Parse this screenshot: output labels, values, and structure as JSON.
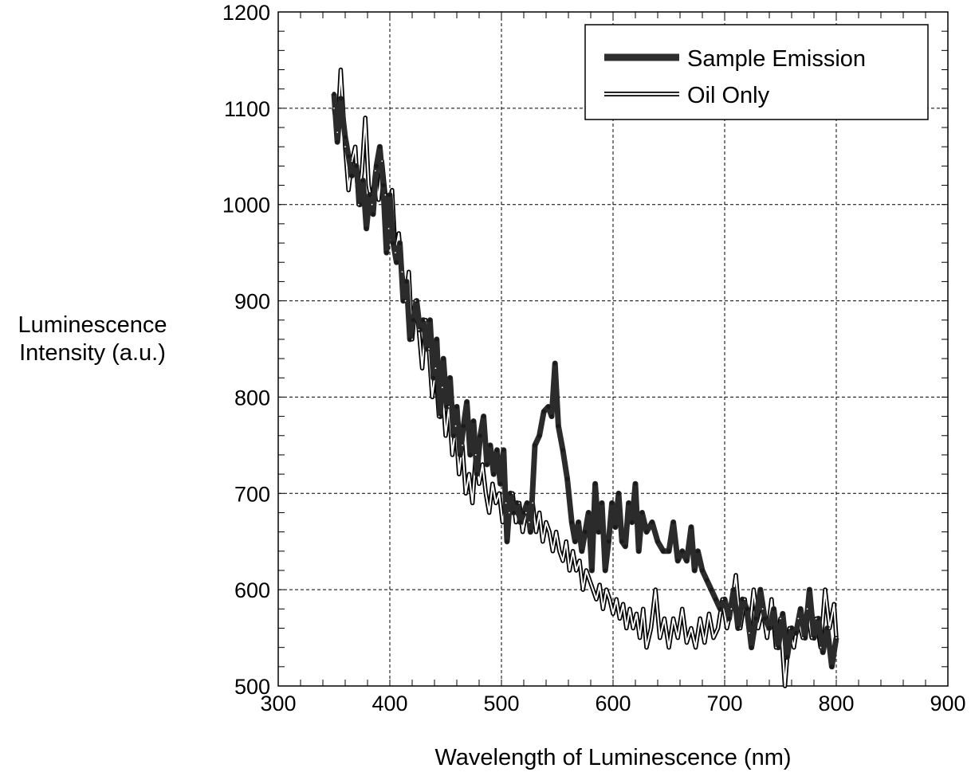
{
  "chart_data": {
    "type": "line",
    "title": "",
    "xlabel": "Wavelength of Luminescence (nm)",
    "ylabel_lines": [
      "Luminescence",
      "Intensity (a.u.)"
    ],
    "xlim": [
      300,
      900
    ],
    "ylim": [
      500,
      1200
    ],
    "x_ticks": [
      "300",
      "400",
      "500",
      "600",
      "700",
      "800",
      "900"
    ],
    "y_ticks": [
      "500",
      "600",
      "700",
      "800",
      "900",
      "1000",
      "1100",
      "1200"
    ],
    "grid": true,
    "legend_position": "top-right",
    "series": [
      {
        "name": "Sample Emission",
        "style": "thick-dark",
        "points": [
          [
            350,
            1115
          ],
          [
            353,
            1065
          ],
          [
            356,
            1110
          ],
          [
            360,
            1070
          ],
          [
            363,
            1050
          ],
          [
            366,
            1030
          ],
          [
            370,
            1040
          ],
          [
            373,
            1000
          ],
          [
            376,
            1025
          ],
          [
            379,
            975
          ],
          [
            382,
            1010
          ],
          [
            385,
            990
          ],
          [
            388,
            1040
          ],
          [
            391,
            1060
          ],
          [
            394,
            1020
          ],
          [
            397,
            950
          ],
          [
            400,
            1010
          ],
          [
            403,
            960
          ],
          [
            406,
            940
          ],
          [
            409,
            960
          ],
          [
            412,
            900
          ],
          [
            415,
            920
          ],
          [
            418,
            860
          ],
          [
            421,
            880
          ],
          [
            424,
            900
          ],
          [
            427,
            870
          ],
          [
            430,
            880
          ],
          [
            433,
            850
          ],
          [
            436,
            880
          ],
          [
            439,
            820
          ],
          [
            442,
            860
          ],
          [
            445,
            780
          ],
          [
            448,
            840
          ],
          [
            451,
            790
          ],
          [
            454,
            820
          ],
          [
            457,
            760
          ],
          [
            460,
            790
          ],
          [
            463,
            740
          ],
          [
            466,
            770
          ],
          [
            469,
            795
          ],
          [
            472,
            740
          ],
          [
            475,
            775
          ],
          [
            478,
            720
          ],
          [
            481,
            760
          ],
          [
            484,
            780
          ],
          [
            487,
            730
          ],
          [
            490,
            750
          ],
          [
            493,
            720
          ],
          [
            496,
            745
          ],
          [
            499,
            710
          ],
          [
            502,
            745
          ],
          [
            505,
            650
          ],
          [
            508,
            700
          ],
          [
            511,
            680
          ],
          [
            514,
            690
          ],
          [
            517,
            670
          ],
          [
            520,
            680
          ],
          [
            523,
            690
          ],
          [
            526,
            660
          ],
          [
            530,
            750
          ],
          [
            534,
            760
          ],
          [
            538,
            785
          ],
          [
            542,
            790
          ],
          [
            545,
            780
          ],
          [
            548,
            835
          ],
          [
            551,
            770
          ],
          [
            555,
            745
          ],
          [
            559,
            715
          ],
          [
            563,
            670
          ],
          [
            566,
            650
          ],
          [
            569,
            670
          ],
          [
            572,
            640
          ],
          [
            575,
            660
          ],
          [
            578,
            680
          ],
          [
            581,
            620
          ],
          [
            584,
            710
          ],
          [
            587,
            660
          ],
          [
            590,
            690
          ],
          [
            593,
            620
          ],
          [
            596,
            650
          ],
          [
            599,
            690
          ],
          [
            602,
            665
          ],
          [
            605,
            700
          ],
          [
            608,
            650
          ],
          [
            611,
            645
          ],
          [
            614,
            690
          ],
          [
            617,
            670
          ],
          [
            620,
            710
          ],
          [
            623,
            640
          ],
          [
            626,
            680
          ],
          [
            630,
            660
          ],
          [
            635,
            670
          ],
          [
            640,
            650
          ],
          [
            645,
            640
          ],
          [
            650,
            640
          ],
          [
            654,
            670
          ],
          [
            658,
            630
          ],
          [
            662,
            640
          ],
          [
            666,
            630
          ],
          [
            670,
            665
          ],
          [
            673,
            620
          ],
          [
            676,
            640
          ],
          [
            680,
            620
          ],
          [
            684,
            610
          ],
          [
            688,
            600
          ],
          [
            692,
            590
          ],
          [
            696,
            580
          ],
          [
            700,
            590
          ],
          [
            704,
            570
          ],
          [
            708,
            600
          ],
          [
            712,
            560
          ],
          [
            716,
            590
          ],
          [
            720,
            580
          ],
          [
            724,
            540
          ],
          [
            728,
            570
          ],
          [
            732,
            600
          ],
          [
            736,
            570
          ],
          [
            740,
            560
          ],
          [
            744,
            580
          ],
          [
            748,
            540
          ],
          [
            752,
            575
          ],
          [
            756,
            530
          ],
          [
            760,
            560
          ],
          [
            764,
            555
          ],
          [
            768,
            580
          ],
          [
            772,
            550
          ],
          [
            776,
            600
          ],
          [
            780,
            550
          ],
          [
            784,
            570
          ],
          [
            788,
            535
          ],
          [
            792,
            560
          ],
          [
            796,
            520
          ],
          [
            800,
            550
          ]
        ]
      },
      {
        "name": "Oil Only",
        "style": "thin-outline",
        "points": [
          [
            350,
            1100
          ],
          [
            353,
            1075
          ],
          [
            356,
            1140
          ],
          [
            360,
            1060
          ],
          [
            363,
            1015
          ],
          [
            366,
            1045
          ],
          [
            369,
            1060
          ],
          [
            372,
            1000
          ],
          [
            375,
            1035
          ],
          [
            378,
            1090
          ],
          [
            381,
            1020
          ],
          [
            384,
            1000
          ],
          [
            387,
            1035
          ],
          [
            390,
            1005
          ],
          [
            393,
            1045
          ],
          [
            396,
            1010
          ],
          [
            399,
            975
          ],
          [
            402,
            1015
          ],
          [
            405,
            950
          ],
          [
            408,
            970
          ],
          [
            411,
            930
          ],
          [
            414,
            900
          ],
          [
            417,
            930
          ],
          [
            420,
            860
          ],
          [
            423,
            900
          ],
          [
            426,
            870
          ],
          [
            429,
            830
          ],
          [
            432,
            880
          ],
          [
            435,
            850
          ],
          [
            438,
            800
          ],
          [
            441,
            830
          ],
          [
            444,
            780
          ],
          [
            447,
            810
          ],
          [
            450,
            760
          ],
          [
            453,
            790
          ],
          [
            456,
            740
          ],
          [
            459,
            770
          ],
          [
            462,
            720
          ],
          [
            465,
            750
          ],
          [
            468,
            700
          ],
          [
            471,
            720
          ],
          [
            474,
            690
          ],
          [
            477,
            740
          ],
          [
            480,
            710
          ],
          [
            483,
            730
          ],
          [
            486,
            700
          ],
          [
            489,
            680
          ],
          [
            492,
            710
          ],
          [
            495,
            690
          ],
          [
            498,
            700
          ],
          [
            501,
            670
          ],
          [
            504,
            690
          ],
          [
            507,
            680
          ],
          [
            510,
            700
          ],
          [
            513,
            670
          ],
          [
            516,
            690
          ],
          [
            519,
            660
          ],
          [
            522,
            680
          ],
          [
            525,
            670
          ],
          [
            528,
            690
          ],
          [
            531,
            660
          ],
          [
            534,
            680
          ],
          [
            537,
            650
          ],
          [
            540,
            670
          ],
          [
            543,
            660
          ],
          [
            546,
            640
          ],
          [
            549,
            660
          ],
          [
            552,
            640
          ],
          [
            555,
            630
          ],
          [
            558,
            650
          ],
          [
            561,
            620
          ],
          [
            564,
            640
          ],
          [
            567,
            620
          ],
          [
            570,
            630
          ],
          [
            573,
            600
          ],
          [
            576,
            620
          ],
          [
            579,
            610
          ],
          [
            582,
            600
          ],
          [
            585,
            590
          ],
          [
            588,
            605
          ],
          [
            591,
            580
          ],
          [
            594,
            600
          ],
          [
            597,
            590
          ],
          [
            600,
            575
          ],
          [
            603,
            590
          ],
          [
            606,
            570
          ],
          [
            609,
            585
          ],
          [
            612,
            560
          ],
          [
            615,
            580
          ],
          [
            618,
            560
          ],
          [
            621,
            575
          ],
          [
            624,
            550
          ],
          [
            627,
            580
          ],
          [
            630,
            540
          ],
          [
            634,
            560
          ],
          [
            638,
            600
          ],
          [
            642,
            550
          ],
          [
            646,
            570
          ],
          [
            650,
            540
          ],
          [
            654,
            570
          ],
          [
            658,
            550
          ],
          [
            662,
            580
          ],
          [
            666,
            545
          ],
          [
            670,
            560
          ],
          [
            674,
            540
          ],
          [
            678,
            570
          ],
          [
            682,
            545
          ],
          [
            686,
            575
          ],
          [
            690,
            550
          ],
          [
            694,
            560
          ],
          [
            698,
            590
          ],
          [
            702,
            560
          ],
          [
            706,
            580
          ],
          [
            710,
            615
          ],
          [
            714,
            560
          ],
          [
            718,
            590
          ],
          [
            722,
            555
          ],
          [
            726,
            600
          ],
          [
            730,
            560
          ],
          [
            734,
            580
          ],
          [
            738,
            550
          ],
          [
            742,
            590
          ],
          [
            746,
            540
          ],
          [
            750,
            570
          ],
          [
            754,
            500
          ],
          [
            758,
            560
          ],
          [
            762,
            540
          ],
          [
            766,
            570
          ],
          [
            770,
            550
          ],
          [
            774,
            580
          ],
          [
            778,
            550
          ],
          [
            782,
            570
          ],
          [
            786,
            540
          ],
          [
            790,
            600
          ],
          [
            794,
            560
          ],
          [
            798,
            585
          ],
          [
            800,
            550
          ]
        ]
      }
    ]
  }
}
